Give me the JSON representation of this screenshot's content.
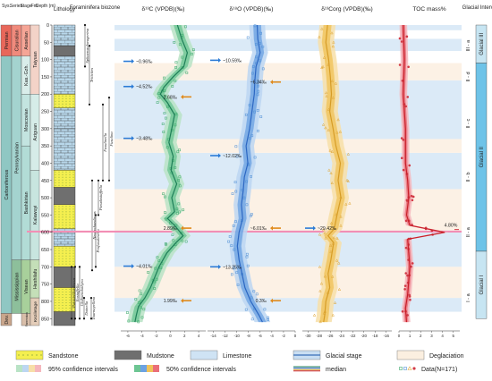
{
  "chart_data": {
    "type": "line",
    "depth_axis": {
      "label": "Depth (m)",
      "ticks": [
        0,
        50,
        100,
        150,
        200,
        250,
        300,
        350,
        400,
        450,
        500,
        550,
        600,
        650,
        700,
        750,
        800,
        850
      ],
      "range": [
        0,
        870
      ]
    },
    "column_headers": {
      "system": "Sys.",
      "series": "Series",
      "stage": "Stage",
      "formation": "Fm.",
      "depth": "Depth (m)",
      "lithology": "Lithology",
      "biozone": "Foraminifera biozone",
      "toc": "TOC mass%",
      "glacial": "Glacial Intervals"
    },
    "stratigraphy": {
      "systems": [
        {
          "name": "Permian",
          "from": 0,
          "to": 90,
          "color": "#e8675a"
        },
        {
          "name": "Carboniferous",
          "from": 90,
          "to": 835,
          "color": "#8fc7c3"
        },
        {
          "name": "Dev.",
          "from": 835,
          "to": 870,
          "color": "#c9a68c"
        }
      ],
      "series": [
        {
          "name": "Cisuralian",
          "from": 0,
          "to": 90,
          "color": "#f08a7c"
        },
        {
          "name": "Pennsylvanian",
          "from": 90,
          "to": 680,
          "color": "#a4d3cf"
        },
        {
          "name": "Mississippian",
          "from": 680,
          "to": 835,
          "color": "#8dbf9b"
        }
      ],
      "stages": [
        {
          "name": "Asselian",
          "from": 0,
          "to": 90,
          "color": "#f5a596"
        },
        {
          "name": "Kas.-Gzh.",
          "from": 90,
          "to": 200,
          "color": "#d9edea"
        },
        {
          "name": "Moscovian",
          "from": 200,
          "to": 350,
          "color": "#c3e4e0"
        },
        {
          "name": "Bashkirian",
          "from": 350,
          "to": 680,
          "color": "#b2dcd6"
        },
        {
          "name": "Visean",
          "from": 680,
          "to": 835,
          "color": "#a8d09b"
        },
        {
          "name": "Famennian",
          "from": 835,
          "to": 870,
          "color": "#d8bea9"
        }
      ],
      "formations": [
        {
          "name": "Taiyuan",
          "from": 0,
          "to": 200,
          "color": "#f3d3c8"
        },
        {
          "name": "Aziguan",
          "from": 200,
          "to": 420,
          "color": "#d6ece8"
        },
        {
          "name": "Kalawuyi",
          "from": 420,
          "to": 680,
          "color": "#c8e5df"
        },
        {
          "name": "Heshilafu",
          "from": 680,
          "to": 790,
          "color": "#c4dfb8"
        },
        {
          "name": "Keziletage",
          "from": 790,
          "to": 870,
          "color": "#e4cdb9"
        }
      ]
    },
    "biozones": [
      {
        "name": "Triticites",
        "from": 60,
        "to": 230
      },
      {
        "name": "Sphaeroschwagerina",
        "from": 0,
        "to": 120
      },
      {
        "name": "Fusulina",
        "from": 210,
        "to": 450
      },
      {
        "name": "Fusulinella",
        "from": 230,
        "to": 450
      },
      {
        "name": "Pseudostaffella",
        "from": 450,
        "to": 550
      },
      {
        "name": "Neoarchaediscus",
        "from": 450,
        "to": 710
      },
      {
        "name": "Profusulinella",
        "from": 550,
        "to": 700
      },
      {
        "name": "Paraarchaediscus",
        "from": 700,
        "to": 850
      },
      {
        "name": "Eostaffella",
        "from": 700,
        "to": 850
      },
      {
        "name": "Globoendothyra",
        "from": 700,
        "to": 850
      },
      {
        "name": "Dainella",
        "from": 790,
        "to": 850
      },
      {
        "name": "Tournayellina",
        "from": 790,
        "to": 850
      }
    ],
    "panels": [
      {
        "key": "d13c",
        "title": "δ¹³C (VPDB)(‰)",
        "xticks": [
          -6,
          -4,
          -2,
          0,
          2,
          4
        ],
        "xlim": [
          -7,
          5
        ],
        "series": [
          {
            "type": "median",
            "points": [
              [
                0,
                1.0
              ],
              [
                40,
                1.6
              ],
              [
                80,
                2.4
              ],
              [
                120,
                1.9
              ],
              [
                150,
                0.4
              ],
              [
                180,
                -0.9
              ],
              [
                200,
                -1.4
              ],
              [
                225,
                -0.4
              ],
              [
                260,
                0.6
              ],
              [
                300,
                0.2
              ],
              [
                340,
                -0.2
              ],
              [
                380,
                0.4
              ],
              [
                420,
                0.1
              ],
              [
                460,
                0.9
              ],
              [
                500,
                0.2
              ],
              [
                540,
                0.6
              ],
              [
                560,
                -0.4
              ],
              [
                580,
                0.6
              ],
              [
                610,
                1.8
              ],
              [
                630,
                0.8
              ],
              [
                660,
                -0.5
              ],
              [
                700,
                -1.6
              ],
              [
                730,
                -2.2
              ],
              [
                760,
                -2.8
              ],
              [
                790,
                -3.6
              ],
              [
                815,
                -4.5
              ],
              [
                840,
                -4.8
              ],
              [
                860,
                -5.0
              ]
            ]
          }
        ],
        "annotations": [
          {
            "text": "~0.96‰",
            "depth": 105
          },
          {
            "text": "~4.52‰",
            "depth": 178
          },
          {
            "text": "2.68‰",
            "depth": 208
          },
          {
            "text": "~3.48‰",
            "depth": 328
          },
          {
            "text": "2.89‰",
            "depth": 588
          },
          {
            "text": "~4.01‰",
            "depth": 698
          },
          {
            "text": "1.99‰",
            "depth": 798
          }
        ]
      },
      {
        "key": "d18o",
        "title": "δ¹⁸O (VPDB)(‰)",
        "xticks": [
          -14,
          -12,
          -10,
          -8,
          -6,
          -4,
          -2,
          0
        ],
        "xlim": [
          -15,
          0
        ],
        "series": [
          {
            "type": "median",
            "points": [
              [
                0,
                -6.5
              ],
              [
                40,
                -6.4
              ],
              [
                80,
                -6.0
              ],
              [
                120,
                -6.7
              ],
              [
                160,
                -6.9
              ],
              [
                200,
                -7.0
              ],
              [
                250,
                -7.4
              ],
              [
                300,
                -7.8
              ],
              [
                350,
                -8.4
              ],
              [
                400,
                -8.1
              ],
              [
                440,
                -8.7
              ],
              [
                480,
                -8.9
              ],
              [
                520,
                -9.2
              ],
              [
                560,
                -9.0
              ],
              [
                600,
                -9.6
              ],
              [
                640,
                -9.9
              ],
              [
                680,
                -9.6
              ],
              [
                720,
                -9.1
              ],
              [
                760,
                -8.6
              ],
              [
                800,
                -7.6
              ],
              [
                840,
                -6.2
              ],
              [
                860,
                -5.6
              ]
            ]
          }
        ],
        "annotations": [
          {
            "text": "~10.59‰",
            "depth": 102
          },
          {
            "text": "~6.34‰",
            "depth": 165
          },
          {
            "text": "~12.02‰",
            "depth": 378
          },
          {
            "text": "~6.01‰",
            "depth": 588
          },
          {
            "text": "~13.25‰",
            "depth": 700
          },
          {
            "text": "0.3‰",
            "depth": 798
          }
        ]
      },
      {
        "key": "d13corg",
        "title": "δ¹³Corg (VPDB)(‰)",
        "xticks": [
          -30,
          -28,
          -26,
          -24,
          -22,
          -20,
          -18,
          -16
        ],
        "xlim": [
          -31,
          -15
        ],
        "series": [
          {
            "type": "median",
            "points": [
              [
                0,
                -26.5
              ],
              [
                50,
                -26.8
              ],
              [
                100,
                -26.3
              ],
              [
                150,
                -26.0
              ],
              [
                200,
                -25.8
              ],
              [
                250,
                -26.1
              ],
              [
                300,
                -25.5
              ],
              [
                350,
                -25.0
              ],
              [
                400,
                -24.2
              ],
              [
                450,
                -24.6
              ],
              [
                500,
                -24.1
              ],
              [
                550,
                -24.8
              ],
              [
                590,
                -25.3
              ],
              [
                610,
                -26.4
              ],
              [
                630,
                -25.4
              ],
              [
                680,
                -25.9
              ],
              [
                720,
                -26.4
              ],
              [
                760,
                -26.1
              ],
              [
                800,
                -26.8
              ],
              [
                840,
                -27.0
              ],
              [
                860,
                -27.2
              ]
            ]
          }
        ],
        "annotations": [
          {
            "text": "~29.42‰",
            "depth": 588
          }
        ]
      },
      {
        "key": "toc",
        "title": "TOC mass%",
        "xticks": [
          0,
          1,
          2,
          3,
          4,
          5
        ],
        "xlim": [
          0,
          5.6
        ],
        "series": [
          {
            "type": "median",
            "points": [
              [
                0,
                0.4
              ],
              [
                100,
                0.5
              ],
              [
                200,
                0.4
              ],
              [
                300,
                0.6
              ],
              [
                400,
                0.6
              ],
              [
                450,
                0.8
              ],
              [
                500,
                0.9
              ],
              [
                550,
                0.7
              ],
              [
                580,
                1.0
              ],
              [
                600,
                4.2
              ],
              [
                620,
                0.8
              ],
              [
                660,
                0.9
              ],
              [
                700,
                1.0
              ],
              [
                740,
                0.9
              ],
              [
                780,
                0.8
              ],
              [
                820,
                0.6
              ],
              [
                860,
                0.7
              ]
            ]
          }
        ],
        "annotations": [
          {
            "text": "4.80%",
            "depth": 592
          }
        ]
      }
    ],
    "glacial_intervals": [
      {
        "label": "Glacial III",
        "from": 0,
        "to": 110
      },
      {
        "label": "Glacial II",
        "from": 110,
        "to": 655
      },
      {
        "label": "Glacial I",
        "from": 655,
        "to": 850
      }
    ],
    "stage_labels": [
      {
        "label": "III - a",
        "depth": 60
      },
      {
        "label": "II - d",
        "depth": 150
      },
      {
        "label": "II - c",
        "depth": 285
      },
      {
        "label": "II - b",
        "depth": 440
      },
      {
        "label": "II - a",
        "depth": 600
      },
      {
        "label": "I - a",
        "depth": 790
      }
    ],
    "glacial_stage_bands": [
      [
        0,
        15
      ],
      [
        40,
        75
      ],
      [
        160,
        330
      ],
      [
        370,
        475
      ],
      [
        595,
        700
      ],
      [
        790,
        830
      ]
    ],
    "deglaciation_bands": [
      [
        110,
        160
      ],
      [
        330,
        370
      ],
      [
        475,
        595
      ],
      [
        700,
        790
      ]
    ],
    "legend": {
      "items": [
        "Sandstone",
        "Mudstone",
        "Limestone",
        "Glacial stage",
        "Deglaciation"
      ],
      "row2": [
        "95% confidence intervals",
        "50% confidence intervals",
        "median"
      ],
      "data_count": "Data(N=171)"
    }
  }
}
